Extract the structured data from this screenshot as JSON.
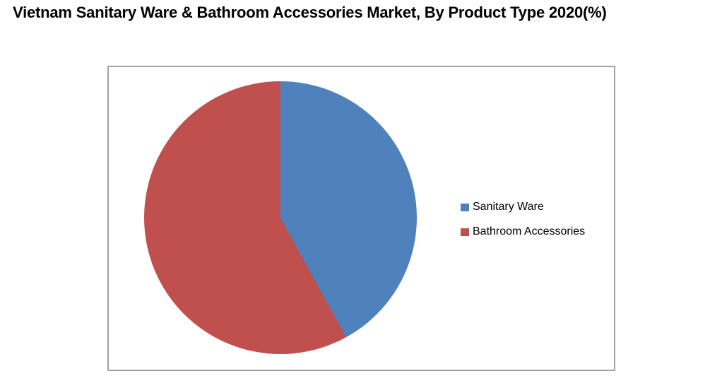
{
  "chart_data": {
    "type": "pie",
    "title": "Vietnam Sanitary Ware & Bathroom Accessories Market, By Product Type 2020(%)",
    "unit": "percent",
    "categories": [
      "Sanitary Ware",
      "Bathroom Accessories"
    ],
    "values": [
      42,
      58
    ],
    "colors": [
      "#4F81BD",
      "#C0504D"
    ],
    "start_angle_deg": 0,
    "direction": "clockwise",
    "legend_position": "right",
    "plot_background": "#FFFFFF",
    "frame_border_color": "#A3A3A3"
  }
}
